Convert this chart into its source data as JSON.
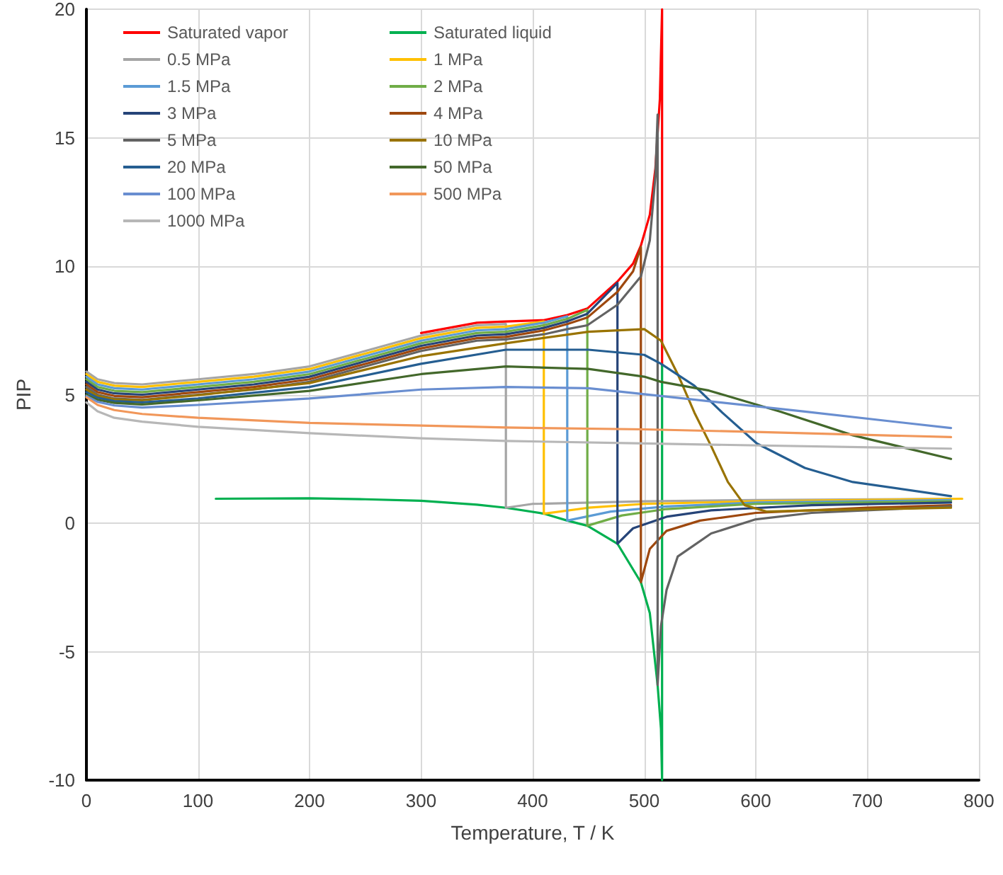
{
  "chart_data": {
    "type": "line",
    "xlabel": "Temperature, T / K",
    "ylabel": "PIP",
    "xlim": [
      0,
      800
    ],
    "ylim": [
      -10,
      20
    ],
    "xticks": [
      0,
      100,
      200,
      300,
      400,
      500,
      600,
      700,
      800
    ],
    "yticks": [
      -10,
      -5,
      0,
      5,
      10,
      15,
      20
    ],
    "grid": true,
    "legend": "top left",
    "marker": "none",
    "line_style": "solid",
    "series": [
      {
        "name": "Saturated vapor",
        "color": "#ff0000",
        "x": [
          300,
          350,
          376,
          410,
          431,
          449,
          476,
          490,
          497,
          505,
          510,
          514,
          516,
          516
        ],
        "values": [
          7.4,
          7.8,
          7.85,
          7.9,
          8.1,
          8.35,
          9.4,
          10.1,
          10.8,
          12.0,
          13.8,
          16.5,
          20,
          6.15
        ]
      },
      {
        "name": "Saturated liquid",
        "color": "#00b050",
        "x": [
          116,
          200,
          250,
          300,
          350,
          376,
          410,
          431,
          449,
          476,
          497,
          505,
          512,
          515,
          516,
          516
        ],
        "values": [
          0.95,
          0.97,
          0.93,
          0.87,
          0.72,
          0.6,
          0.37,
          0.1,
          -0.1,
          -0.8,
          -2.3,
          -3.5,
          -6.3,
          -8,
          -10,
          6.15
        ]
      },
      {
        "name": "0.5 MPa",
        "color": "#a5a5a5",
        "x": [
          0,
          10,
          25,
          50,
          100,
          150,
          200,
          250,
          300,
          350,
          376,
          376,
          400,
          500,
          600,
          775
        ],
        "values": [
          5.9,
          5.6,
          5.45,
          5.4,
          5.6,
          5.8,
          6.1,
          6.7,
          7.3,
          7.7,
          7.75,
          0.6,
          0.75,
          0.85,
          0.9,
          0.95
        ]
      },
      {
        "name": "1 MPa",
        "color": "#ffc000",
        "x": [
          0,
          10,
          25,
          50,
          100,
          150,
          200,
          250,
          300,
          350,
          376,
          410,
          410,
          450,
          500,
          600,
          785
        ],
        "values": [
          5.8,
          5.5,
          5.35,
          5.3,
          5.5,
          5.7,
          6.0,
          6.6,
          7.2,
          7.6,
          7.65,
          7.85,
          0.37,
          0.6,
          0.75,
          0.85,
          0.95
        ]
      },
      {
        "name": "1.5 MPa",
        "color": "#5b9bd5",
        "x": [
          0,
          10,
          25,
          50,
          100,
          150,
          200,
          250,
          300,
          350,
          376,
          410,
          431,
          431,
          470,
          520,
          600,
          775
        ],
        "values": [
          5.7,
          5.4,
          5.25,
          5.2,
          5.4,
          5.6,
          5.9,
          6.5,
          7.1,
          7.5,
          7.55,
          7.8,
          8.05,
          0.1,
          0.45,
          0.65,
          0.8,
          0.9
        ]
      },
      {
        "name": "2 MPa",
        "color": "#70ad47",
        "x": [
          0,
          10,
          25,
          50,
          100,
          150,
          200,
          250,
          300,
          350,
          376,
          410,
          431,
          449,
          449,
          480,
          520,
          600,
          775
        ],
        "values": [
          5.6,
          5.3,
          5.15,
          5.1,
          5.3,
          5.5,
          5.8,
          6.4,
          7.0,
          7.4,
          7.45,
          7.7,
          7.95,
          8.3,
          -0.1,
          0.3,
          0.55,
          0.75,
          0.85
        ]
      },
      {
        "name": "3 MPa",
        "color": "#264478",
        "x": [
          0,
          10,
          25,
          50,
          100,
          150,
          200,
          250,
          300,
          350,
          376,
          410,
          431,
          449,
          476,
          476,
          490,
          520,
          560,
          650,
          775
        ],
        "values": [
          5.5,
          5.2,
          5.05,
          5.0,
          5.2,
          5.4,
          5.7,
          6.3,
          6.9,
          7.3,
          7.35,
          7.6,
          7.85,
          8.15,
          9.35,
          -0.8,
          -0.2,
          0.25,
          0.5,
          0.7,
          0.8
        ]
      },
      {
        "name": "4 MPa",
        "color": "#9e480e",
        "x": [
          0,
          10,
          25,
          50,
          100,
          150,
          200,
          250,
          300,
          350,
          376,
          410,
          431,
          449,
          476,
          490,
          497,
          497,
          505,
          520,
          550,
          600,
          700,
          775
        ],
        "values": [
          5.4,
          5.1,
          4.95,
          4.9,
          5.1,
          5.3,
          5.6,
          6.2,
          6.8,
          7.2,
          7.25,
          7.5,
          7.75,
          8.0,
          9.0,
          9.8,
          10.75,
          -2.3,
          -1.0,
          -0.3,
          0.1,
          0.4,
          0.6,
          0.7
        ]
      },
      {
        "name": "5 MPa",
        "color": "#636363",
        "x": [
          0,
          10,
          25,
          50,
          100,
          150,
          200,
          250,
          300,
          350,
          376,
          410,
          431,
          449,
          476,
          497,
          505,
          510,
          512,
          512,
          515,
          520,
          530,
          560,
          600,
          650,
          775
        ],
        "values": [
          5.3,
          5.0,
          4.85,
          4.8,
          5.0,
          5.2,
          5.5,
          6.1,
          6.7,
          7.1,
          7.15,
          7.35,
          7.55,
          7.7,
          8.5,
          9.6,
          11.0,
          13.5,
          15.9,
          -6.3,
          -4,
          -2.6,
          -1.3,
          -0.4,
          0.15,
          0.4,
          0.65
        ]
      },
      {
        "name": "10 MPa",
        "color": "#997300",
        "x": [
          0,
          10,
          25,
          50,
          100,
          200,
          300,
          376,
          450,
          500,
          515,
          530,
          545,
          560,
          575,
          590,
          610,
          650,
          775
        ],
        "values": [
          5.2,
          4.95,
          4.82,
          4.78,
          4.98,
          5.45,
          6.5,
          7.0,
          7.45,
          7.55,
          7.1,
          5.8,
          4.3,
          3.0,
          1.6,
          0.7,
          0.45,
          0.5,
          0.6
        ]
      },
      {
        "name": "20 MPa",
        "color": "#255e91",
        "x": [
          0,
          10,
          25,
          50,
          100,
          200,
          300,
          376,
          450,
          500,
          515,
          545,
          570,
          601,
          644,
          687,
          775
        ],
        "values": [
          5.1,
          4.88,
          4.75,
          4.7,
          4.85,
          5.3,
          6.2,
          6.75,
          6.75,
          6.55,
          6.2,
          5.35,
          4.3,
          3.1,
          2.15,
          1.6,
          1.05
        ]
      },
      {
        "name": "50 MPa",
        "color": "#43682b",
        "x": [
          0,
          10,
          25,
          50,
          100,
          200,
          300,
          376,
          450,
          500,
          515,
          558,
          622,
          687,
          775
        ],
        "values": [
          5.0,
          4.8,
          4.68,
          4.62,
          4.78,
          5.15,
          5.8,
          6.1,
          6.0,
          5.7,
          5.5,
          5.16,
          4.34,
          3.42,
          2.5
        ]
      },
      {
        "name": "100 MPa",
        "color": "#698ed0",
        "x": [
          0,
          10,
          25,
          50,
          100,
          200,
          300,
          376,
          450,
          515,
          644,
          775
        ],
        "values": [
          4.95,
          4.72,
          4.58,
          4.5,
          4.6,
          4.85,
          5.2,
          5.3,
          5.25,
          4.95,
          4.34,
          3.7
        ]
      },
      {
        "name": "500 MPa",
        "color": "#f1975a",
        "x": [
          0,
          10,
          25,
          50,
          100,
          200,
          300,
          376,
          500,
          600,
          775
        ],
        "values": [
          4.9,
          4.6,
          4.4,
          4.25,
          4.1,
          3.9,
          3.8,
          3.72,
          3.65,
          3.55,
          3.35
        ]
      },
      {
        "name": "1000 MPa",
        "color": "#b7b7b7",
        "x": [
          0,
          10,
          25,
          50,
          100,
          200,
          300,
          376,
          500,
          775
        ],
        "values": [
          4.7,
          4.35,
          4.1,
          3.95,
          3.75,
          3.5,
          3.3,
          3.2,
          3.1,
          2.9
        ]
      }
    ]
  }
}
